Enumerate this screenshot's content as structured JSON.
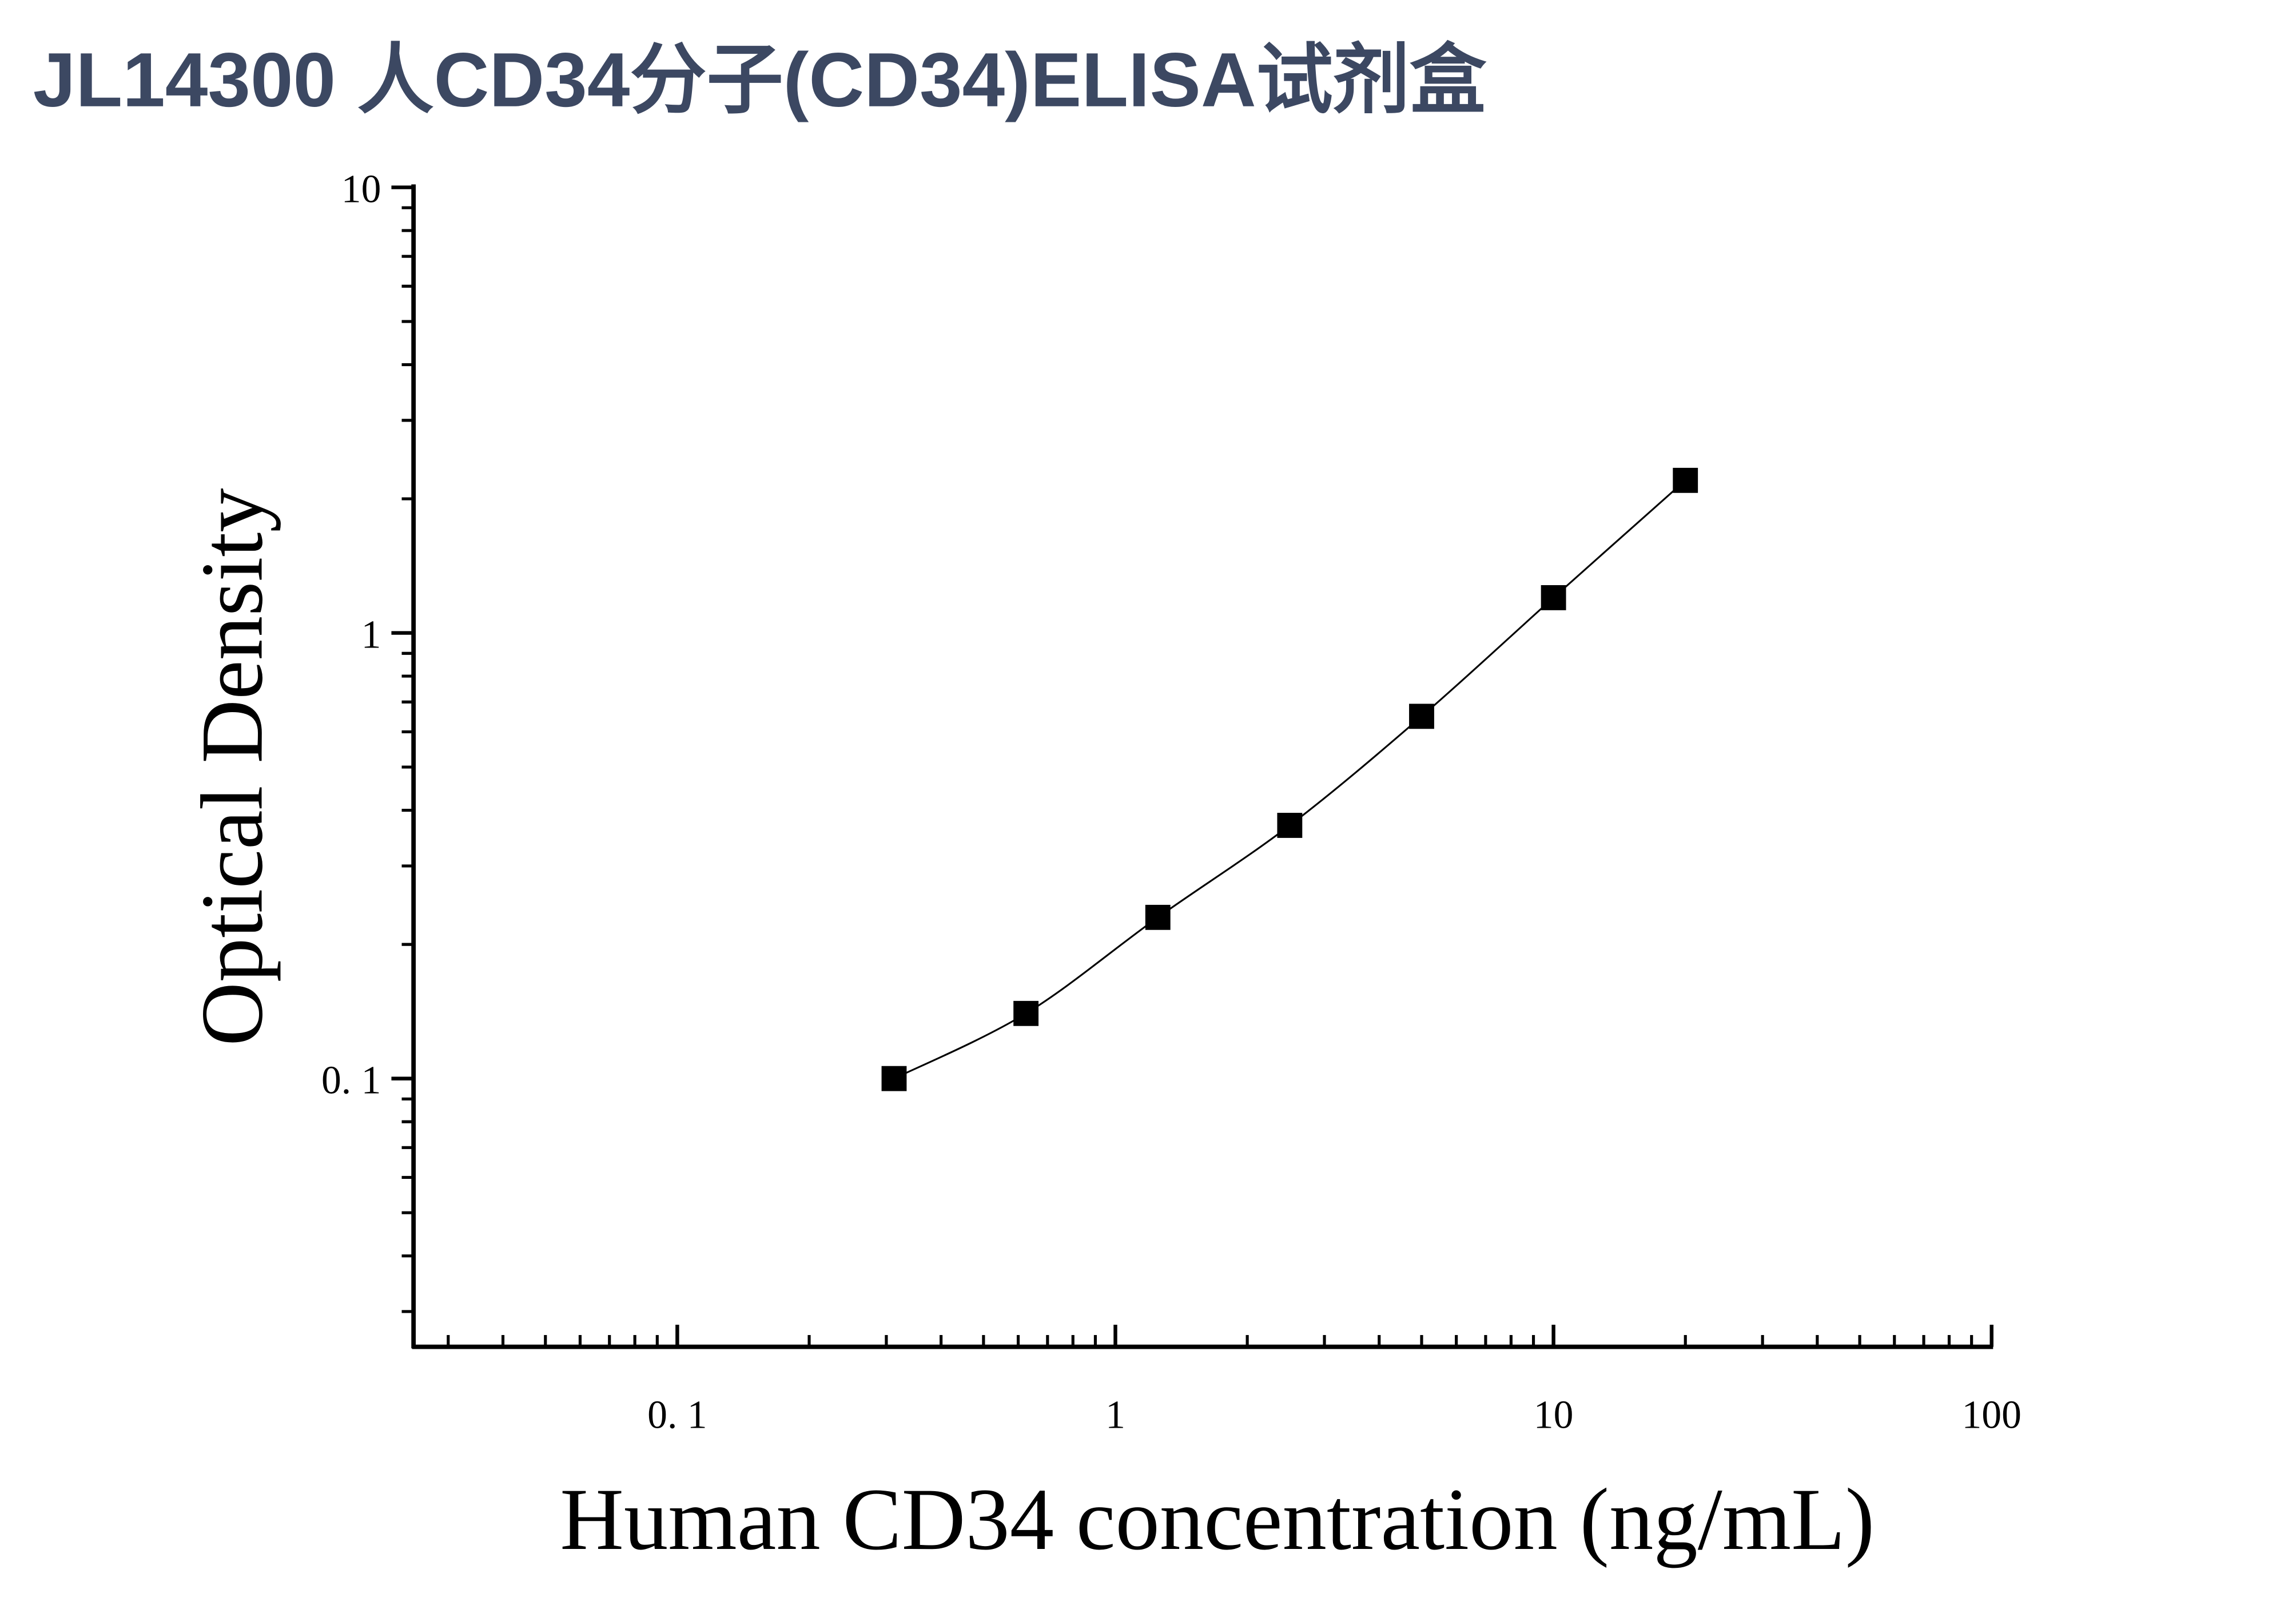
{
  "chart_data": {
    "type": "scatter",
    "title": "JL14300 人CD34分子(CD34)ELISA试剂盒",
    "x_label": "Human CD34 concentration (ng/mL)",
    "y_label": "Optical Density",
    "x_scale": "log",
    "y_scale": "log",
    "xlim": [
      0.025,
      100
    ],
    "ylim": [
      0.025,
      10
    ],
    "xticks": [
      {
        "value": 0.1,
        "label": "0. 1"
      },
      1,
      10,
      100
    ],
    "yticks": [
      {
        "value": 0.1,
        "label": "0. 1"
      },
      1,
      10
    ],
    "series": [
      {
        "color": "#000000",
        "x": [
          0.3125,
          0.625,
          1.25,
          2.5,
          5,
          10,
          20
        ],
        "values": [
          0.1,
          0.14,
          0.23,
          0.37,
          0.65,
          1.2,
          2.2
        ]
      }
    ]
  }
}
